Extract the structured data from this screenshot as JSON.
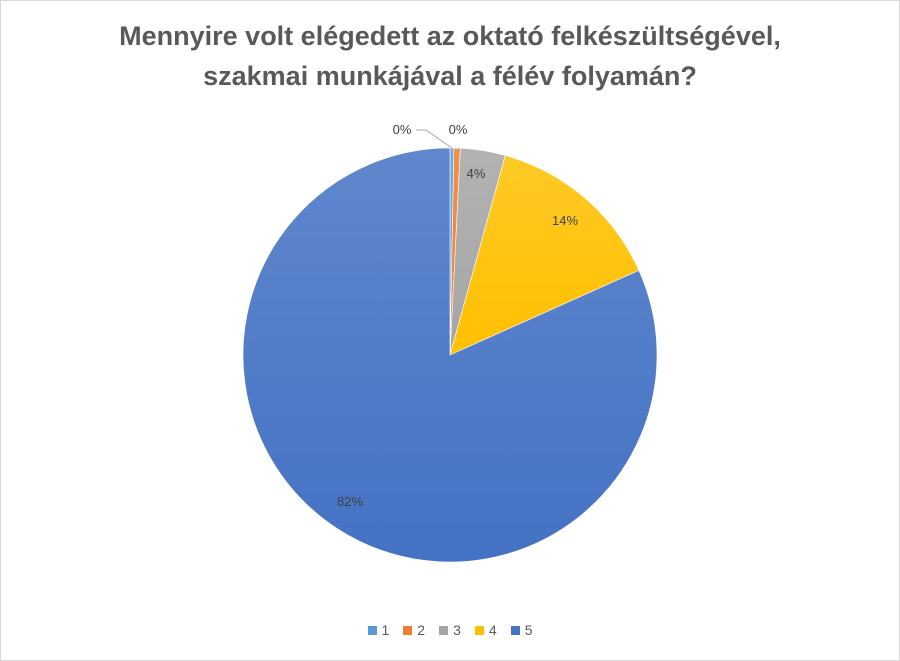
{
  "chart_data": {
    "type": "pie",
    "title_lines": [
      "Mennyire volt elégedett az oktató felkészültségével,",
      "szakmai munkájával a félév folyamán?"
    ],
    "categories": [
      "1",
      "2",
      "3",
      "4",
      "5"
    ],
    "values": [
      0.3,
      0.5,
      3.5,
      14.0,
      81.7
    ],
    "labels": [
      "0%",
      "0%",
      "4%",
      "14%",
      "82%"
    ],
    "colors": [
      "#5b9bd5",
      "#ed7d31",
      "#a5a5a5",
      "#ffc000",
      "#4472c4"
    ],
    "legend_position": "bottom"
  }
}
